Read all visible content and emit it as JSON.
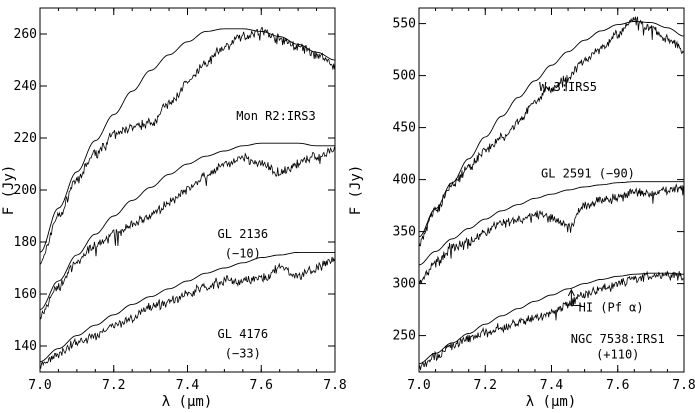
{
  "chart_data": [
    {
      "type": "line",
      "panel": "left",
      "xlabel": "λ (μm)",
      "ylabel": "F (Jy)",
      "xlim": [
        7.0,
        7.8
      ],
      "ylim": [
        130,
        270
      ],
      "x_ticks": [
        "7.0",
        "7.2",
        "7.4",
        "7.6",
        "7.8"
      ],
      "y_ticks": [
        "140",
        "160",
        "180",
        "200",
        "220",
        "240",
        "260"
      ],
      "x_tick_values": [
        7.0,
        7.2,
        7.4,
        7.6,
        7.8
      ],
      "y_tick_values": [
        140,
        160,
        180,
        200,
        220,
        240,
        260
      ],
      "grid": false,
      "legend": "none",
      "series": [
        {
          "kind": "observed",
          "x": [
            7.0,
            7.05,
            7.1,
            7.15,
            7.2,
            7.25,
            7.3,
            7.35,
            7.4,
            7.45,
            7.5,
            7.55,
            7.6,
            7.65,
            7.7,
            7.75,
            7.8
          ],
          "values": [
            172,
            190,
            204,
            214,
            221,
            224,
            226,
            233,
            241,
            249,
            255,
            259,
            261,
            258,
            255,
            252,
            248
          ]
        },
        {
          "kind": "model",
          "x": [
            7.0,
            7.05,
            7.1,
            7.15,
            7.2,
            7.25,
            7.3,
            7.35,
            7.4,
            7.45,
            7.5,
            7.55,
            7.6,
            7.65,
            7.7,
            7.75,
            7.8
          ],
          "values": [
            176,
            193,
            207,
            219,
            229,
            238,
            246,
            252,
            257,
            261,
            262,
            262,
            261,
            259,
            256,
            253,
            250
          ]
        },
        {
          "kind": "observed",
          "x": [
            7.0,
            7.05,
            7.1,
            7.15,
            7.2,
            7.25,
            7.3,
            7.35,
            7.4,
            7.45,
            7.5,
            7.55,
            7.6,
            7.65,
            7.7,
            7.75,
            7.8
          ],
          "values": [
            152,
            163,
            172,
            179,
            183,
            187,
            190,
            195,
            200,
            205,
            210,
            212,
            210,
            207,
            210,
            213,
            216
          ]
        },
        {
          "kind": "model",
          "x": [
            7.0,
            7.05,
            7.1,
            7.15,
            7.2,
            7.25,
            7.3,
            7.35,
            7.4,
            7.45,
            7.5,
            7.55,
            7.6,
            7.65,
            7.7,
            7.75,
            7.8
          ],
          "values": [
            154,
            165,
            175,
            183,
            190,
            196,
            201,
            206,
            210,
            213,
            215,
            217,
            218,
            218,
            218,
            217,
            217
          ]
        },
        {
          "kind": "observed",
          "x": [
            7.0,
            7.05,
            7.1,
            7.15,
            7.2,
            7.25,
            7.3,
            7.35,
            7.4,
            7.45,
            7.5,
            7.55,
            7.6,
            7.65,
            7.7,
            7.75,
            7.8
          ],
          "values": [
            133,
            137,
            141,
            144,
            148,
            151,
            155,
            157,
            160,
            163,
            165,
            165,
            166,
            170,
            167,
            170,
            173
          ]
        },
        {
          "kind": "model",
          "x": [
            7.0,
            7.05,
            7.1,
            7.15,
            7.2,
            7.25,
            7.3,
            7.35,
            7.4,
            7.45,
            7.5,
            7.55,
            7.6,
            7.65,
            7.7,
            7.75,
            7.8
          ],
          "values": [
            134,
            139,
            144,
            148,
            152,
            156,
            159,
            162,
            165,
            168,
            170,
            172,
            174,
            175,
            176,
            176,
            176
          ]
        }
      ],
      "annotations": [
        {
          "text": "Mon R2:IRS3",
          "x": 7.64,
          "y": 227
        },
        {
          "text": "GL 2136",
          "x": 7.55,
          "y": 181.5
        },
        {
          "text": "(−10)",
          "x": 7.55,
          "y": 174
        },
        {
          "text": "GL 4176",
          "x": 7.55,
          "y": 143
        },
        {
          "text": "(−33)",
          "x": 7.55,
          "y": 135.5
        }
      ]
    },
    {
      "type": "line",
      "panel": "right",
      "xlabel": "λ (μm)",
      "ylabel": "F (Jy)",
      "xlim": [
        7.0,
        7.8
      ],
      "ylim": [
        215,
        565
      ],
      "x_ticks": [
        "7.0",
        "7.2",
        "7.4",
        "7.6",
        "7.8"
      ],
      "y_ticks": [
        "250",
        "300",
        "350",
        "400",
        "450",
        "500",
        "550"
      ],
      "x_tick_values": [
        7.0,
        7.2,
        7.4,
        7.6,
        7.8
      ],
      "y_tick_values": [
        250,
        300,
        350,
        400,
        450,
        500,
        550
      ],
      "grid": false,
      "legend": "none",
      "series": [
        {
          "kind": "observed",
          "x": [
            7.0,
            7.05,
            7.1,
            7.15,
            7.2,
            7.25,
            7.3,
            7.35,
            7.4,
            7.45,
            7.5,
            7.55,
            7.6,
            7.65,
            7.7,
            7.75,
            7.8
          ],
          "values": [
            340,
            370,
            394,
            412,
            428,
            440,
            455,
            475,
            488,
            498,
            515,
            528,
            540,
            553,
            545,
            535,
            525
          ]
        },
        {
          "kind": "model",
          "x": [
            7.0,
            7.05,
            7.1,
            7.15,
            7.2,
            7.25,
            7.3,
            7.35,
            7.4,
            7.45,
            7.5,
            7.55,
            7.6,
            7.65,
            7.7,
            7.75,
            7.8
          ],
          "values": [
            345,
            372,
            397,
            420,
            441,
            461,
            479,
            495,
            510,
            523,
            534,
            543,
            549,
            552,
            551,
            546,
            538
          ]
        },
        {
          "kind": "observed",
          "x": [
            7.0,
            7.05,
            7.1,
            7.15,
            7.2,
            7.25,
            7.3,
            7.35,
            7.4,
            7.45,
            7.5,
            7.55,
            7.6,
            7.65,
            7.7,
            7.75,
            7.8
          ],
          "values": [
            300,
            320,
            335,
            340,
            350,
            358,
            362,
            366,
            364,
            356,
            375,
            380,
            382,
            388,
            385,
            390,
            393
          ]
        },
        {
          "kind": "model",
          "x": [
            7.0,
            7.05,
            7.1,
            7.15,
            7.2,
            7.25,
            7.3,
            7.35,
            7.4,
            7.45,
            7.5,
            7.55,
            7.6,
            7.65,
            7.7,
            7.75,
            7.8
          ],
          "values": [
            318,
            331,
            343,
            353,
            362,
            370,
            376,
            382,
            386,
            390,
            393,
            395,
            397,
            398,
            398,
            398,
            398
          ]
        },
        {
          "kind": "observed",
          "x": [
            7.0,
            7.05,
            7.1,
            7.15,
            7.2,
            7.25,
            7.3,
            7.35,
            7.4,
            7.45,
            7.5,
            7.55,
            7.6,
            7.65,
            7.7,
            7.75,
            7.8
          ],
          "values": [
            221,
            230,
            240,
            247,
            253,
            258,
            262,
            267,
            272,
            280,
            290,
            295,
            301,
            305,
            307,
            308,
            307
          ]
        },
        {
          "kind": "model",
          "x": [
            7.0,
            7.05,
            7.1,
            7.15,
            7.2,
            7.25,
            7.3,
            7.35,
            7.4,
            7.45,
            7.5,
            7.55,
            7.6,
            7.65,
            7.7,
            7.75,
            7.8
          ],
          "values": [
            223,
            233,
            243,
            252,
            261,
            269,
            276,
            283,
            289,
            295,
            300,
            304,
            307,
            309,
            310,
            310,
            309
          ]
        }
      ],
      "annotations": [
        {
          "text": "W 3:IRS5",
          "x": 7.45,
          "y": 485
        },
        {
          "text": "GL 2591 (−90)",
          "x": 7.51,
          "y": 402
        },
        {
          "text": "HI (Pf α)",
          "x": 7.58,
          "y": 273
        },
        {
          "text": "NGC 7538:IRS1",
          "x": 7.6,
          "y": 243
        },
        {
          "text": "(+110)",
          "x": 7.6,
          "y": 228
        }
      ],
      "arrow": {
        "x": 7.46,
        "y_from": 279,
        "y_to": 294
      }
    }
  ]
}
